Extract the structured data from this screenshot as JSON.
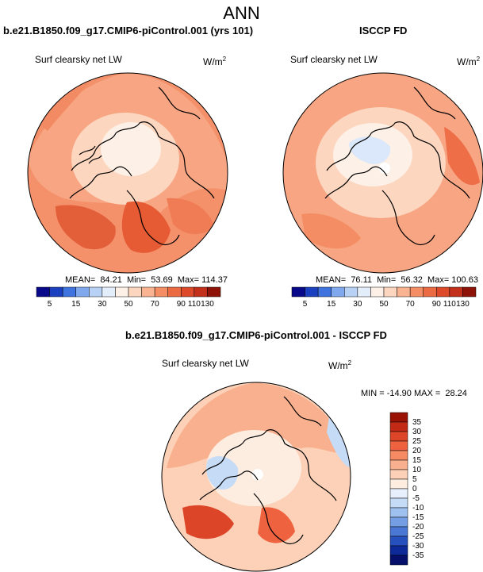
{
  "page": {
    "title": "ANN",
    "panels": [
      {
        "title": "b.e21.B1850.f09_g17.CMIP6-piControl.001 (yrs 101)",
        "subtitle": "Surf clearsky net LW",
        "units_base": "W/m",
        "units_exp": "2",
        "stats": "MEAN=  84.21  Min=  53.69  Max= 114.37"
      },
      {
        "title": "ISCCP FD",
        "subtitle": "Surf clearsky net LW",
        "units_base": "W/m",
        "units_exp": "2",
        "stats": "MEAN=  76.11  Min=  56.32  Max= 100.63"
      },
      {
        "title": "b.e21.B1850.f09_g17.CMIP6-piControl.001 - ISCCP FD",
        "subtitle": "Surf clearsky net LW",
        "units_base": "W/m",
        "units_exp": "2",
        "stats": "MIN = -14.90 MAX =  28.24"
      }
    ]
  },
  "chart_data": [
    {
      "type": "heatmap",
      "projection": "north polar stereographic",
      "title": "b.e21.B1850.f09_g17.CMIP6-piControl.001 (yrs 101)",
      "variable": "Surf clearsky net LW",
      "units": "W/m2",
      "mean": 84.21,
      "min": 53.69,
      "max": 114.37,
      "colorbar_levels": [
        5,
        15,
        30,
        50,
        70,
        90,
        110,
        130
      ],
      "colorbar_colors": [
        "#08088a",
        "#1a3fbf",
        "#3f74e0",
        "#7fa8ef",
        "#b8d2f5",
        "#e4eefb",
        "#fdf0e6",
        "#fcd6bf",
        "#f9b391",
        "#f48d63",
        "#ec6a42",
        "#dd4a2a",
        "#c2301c",
        "#8e1208"
      ],
      "colorbar_position": "bottom"
    },
    {
      "type": "heatmap",
      "projection": "north polar stereographic",
      "title": "ISCCP FD",
      "variable": "Surf clearsky net LW",
      "units": "W/m2",
      "mean": 76.11,
      "min": 56.32,
      "max": 100.63,
      "colorbar_levels": [
        5,
        15,
        30,
        50,
        70,
        90,
        110,
        130
      ],
      "colorbar_colors": [
        "#08088a",
        "#1a3fbf",
        "#3f74e0",
        "#7fa8ef",
        "#b8d2f5",
        "#e4eefb",
        "#fdf0e6",
        "#fcd6bf",
        "#f9b391",
        "#f48d63",
        "#ec6a42",
        "#dd4a2a",
        "#c2301c",
        "#8e1208"
      ],
      "colorbar_position": "bottom"
    },
    {
      "type": "heatmap",
      "projection": "north polar stereographic",
      "title": "b.e21.B1850.f09_g17.CMIP6-piControl.001 - ISCCP FD",
      "variable": "Surf clearsky net LW",
      "units": "W/m2",
      "min": -14.9,
      "max": 28.24,
      "colorbar_levels": [
        35,
        30,
        25,
        20,
        15,
        10,
        5,
        0,
        -5,
        -10,
        -15,
        -20,
        -25,
        -30,
        -35
      ],
      "colorbar_colors": [
        "#9a1206",
        "#c32a15",
        "#dc4527",
        "#ee6240",
        "#f68a63",
        "#f9b08e",
        "#fcd1b7",
        "#fdece0",
        "#e6effb",
        "#c6dbf6",
        "#9fc1ef",
        "#759fe4",
        "#4a78d4",
        "#2550bd",
        "#0d2a98",
        "#06106a"
      ],
      "colorbar_position": "right"
    }
  ]
}
